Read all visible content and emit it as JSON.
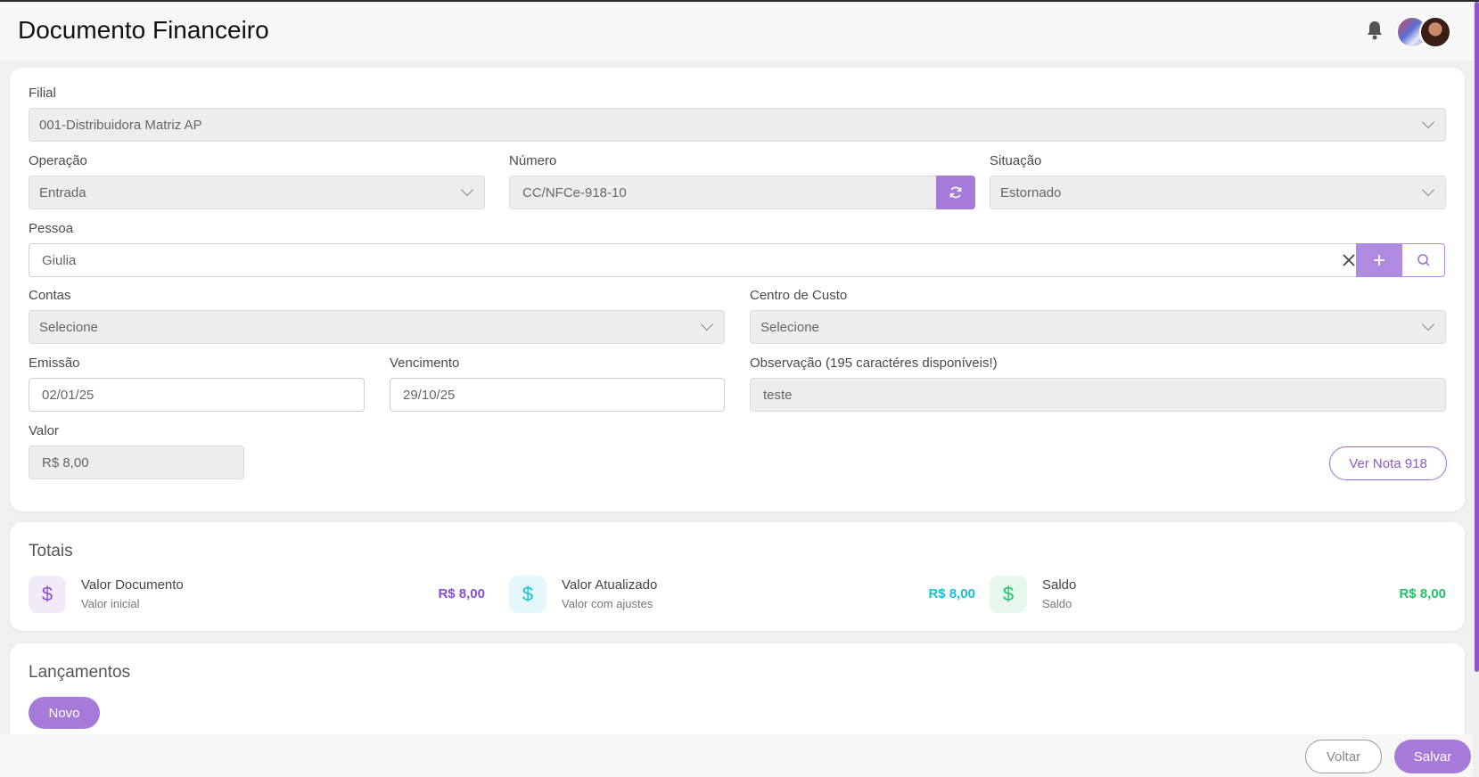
{
  "header": {
    "title": "Documento Financeiro",
    "icons": {
      "notifications": "bell-icon",
      "user": "avatar"
    }
  },
  "form": {
    "filial": {
      "label": "Filial",
      "value": "001-Distribuidora Matriz AP"
    },
    "operacao": {
      "label": "Operação",
      "value": "Entrada"
    },
    "numero": {
      "label": "Número",
      "value": "CC/NFCe-918-10"
    },
    "situacao": {
      "label": "Situação",
      "value": "Estornado"
    },
    "pessoa": {
      "label": "Pessoa",
      "value": "Giulia"
    },
    "contas": {
      "label": "Contas",
      "value": "Selecione"
    },
    "centro_custo": {
      "label": "Centro de Custo",
      "value": "Selecione"
    },
    "emissao": {
      "label": "Emissão",
      "value": "02/01/25"
    },
    "vencimento": {
      "label": "Vencimento",
      "value": "29/10/25"
    },
    "observacao": {
      "label": "Observação (195 caractéres disponíveis!)",
      "value": "teste"
    },
    "valor": {
      "label": "Valor",
      "value": "R$ 8,00"
    },
    "ver_nota_label": "Ver Nota 918"
  },
  "totais": {
    "title": "Totais",
    "items": [
      {
        "name": "Valor Documento",
        "sub": "Valor inicial",
        "value": "R$ 8,00",
        "icon": "dollar-icon",
        "color": "#8a4fd0",
        "bg": "#f1eaf9"
      },
      {
        "name": "Valor Atualizado",
        "sub": "Valor com ajustes",
        "value": "R$ 8,00",
        "icon": "dollar-icon",
        "color": "#17c1d6",
        "bg": "#e4f8fb"
      },
      {
        "name": "Saldo",
        "sub": "Saldo",
        "value": "R$ 8,00",
        "icon": "dollar-icon",
        "color": "#22c26b",
        "bg": "#e6f7ee"
      }
    ]
  },
  "lancamentos": {
    "title": "Lançamentos",
    "novo_label": "Novo"
  },
  "footer": {
    "voltar_label": "Voltar",
    "salvar_label": "Salvar"
  },
  "colors": {
    "accent": "#a57ad9",
    "accent_border": "#9a6fd4"
  }
}
